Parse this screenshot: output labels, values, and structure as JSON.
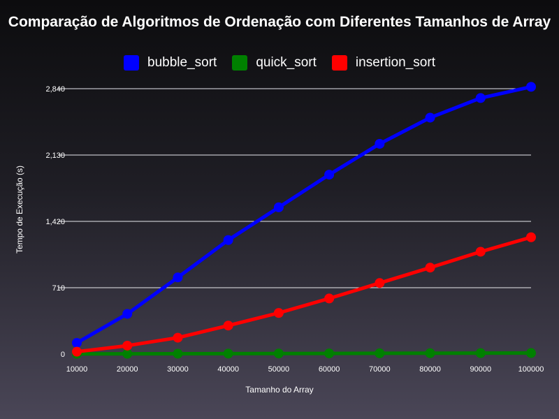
{
  "chart_data": {
    "type": "line",
    "title": "Comparação de Algoritmos de Ordenação com Diferentes Tamanhos de Array",
    "xlabel": "Tamanho do Array",
    "ylabel": "Tempo de Execução (s)",
    "x": [
      10000,
      20000,
      30000,
      40000,
      50000,
      60000,
      70000,
      80000,
      90000,
      100000
    ],
    "x_tick_labels": [
      "10000",
      "20000",
      "30000",
      "40000",
      "50000",
      "60000",
      "70000",
      "80000",
      "90000",
      "100000"
    ],
    "yticks": [
      0,
      710,
      1420,
      2130,
      2840
    ],
    "y_tick_labels": [
      "0",
      "710",
      "1,420",
      "2,130",
      "2,840"
    ],
    "ylim": [
      0,
      2840
    ],
    "grid": true,
    "legend_position": "top-center",
    "series": [
      {
        "name": "bubble_sort",
        "color": "#0000ff",
        "values": [
          120,
          430,
          820,
          1220,
          1570,
          1920,
          2250,
          2530,
          2740,
          2860
        ]
      },
      {
        "name": "quick_sort",
        "color": "#008000",
        "values": [
          2,
          3,
          4,
          5,
          6,
          7,
          8,
          9,
          10,
          11
        ]
      },
      {
        "name": "insertion_sort",
        "color": "#ff0000",
        "values": [
          25,
          90,
          175,
          305,
          440,
          595,
          760,
          925,
          1095,
          1250
        ]
      }
    ]
  }
}
